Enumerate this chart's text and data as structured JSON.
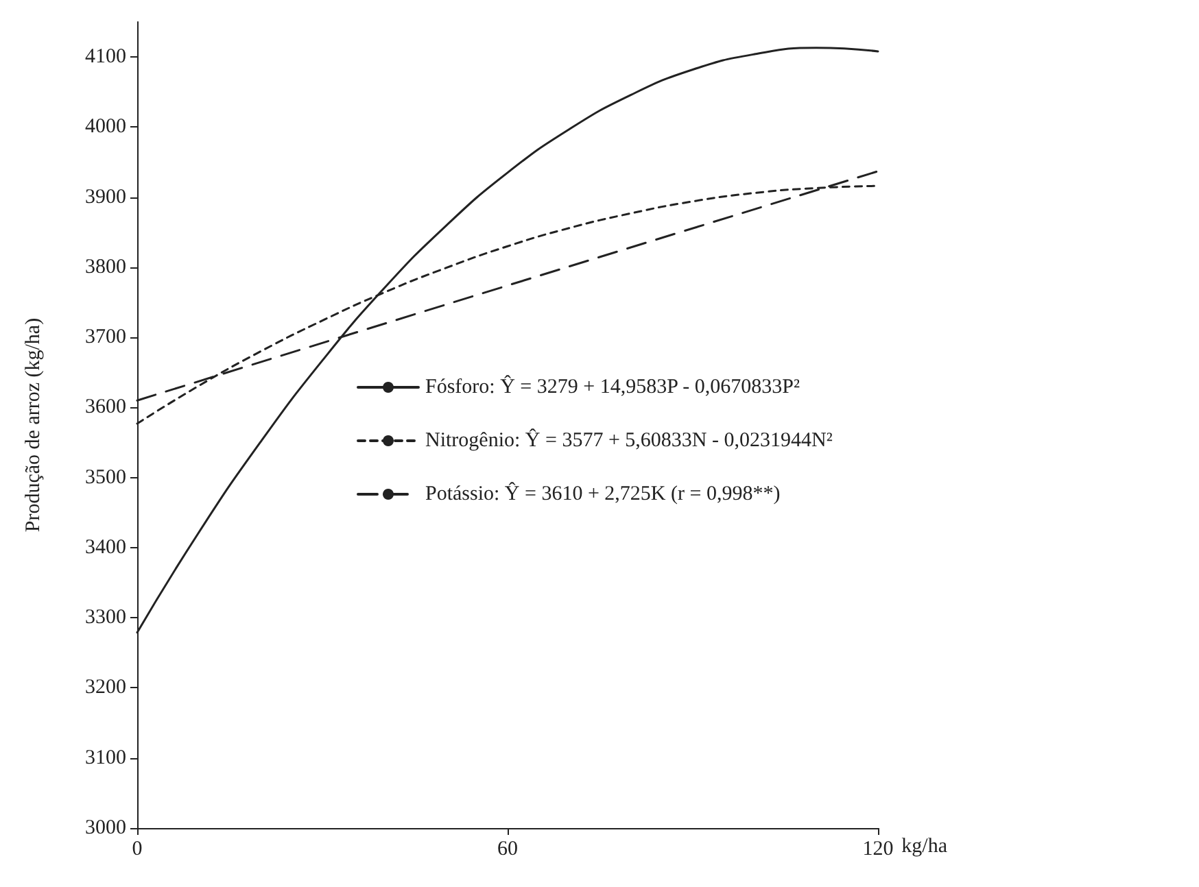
{
  "chart_data": {
    "type": "line",
    "xlabel": "kg/ha",
    "ylabel": "Produção de arroz (kg/ha)",
    "xlim": [
      0,
      120
    ],
    "xticks": [
      0,
      60,
      120
    ],
    "ylim": [
      3000,
      4150
    ],
    "yticks": [
      3000,
      3100,
      3200,
      3300,
      3400,
      3500,
      3600,
      3700,
      3800,
      3900,
      4000,
      4100
    ],
    "legend": "right",
    "marker": "none",
    "series": [
      {
        "name": "Fósforo: Ŷ = 3279 + 14,9583P - 0,0670833P²",
        "color": "#222222",
        "line_style": "solid",
        "x": [
          0,
          10,
          20,
          30,
          40,
          50,
          60,
          70,
          80,
          90,
          100,
          110,
          120
        ],
        "values": [
          3279,
          3422,
          3551,
          3667,
          3770,
          3859,
          3935,
          3997,
          4046,
          4082,
          4104,
          4113,
          4108
        ]
      },
      {
        "name": "Nitrogênio: Ŷ = 3577 + 5,60833N - 0,0231944N²",
        "color": "#222222",
        "line_style": "dotted",
        "x": [
          0,
          10,
          20,
          30,
          40,
          50,
          60,
          70,
          80,
          90,
          100,
          110,
          120
        ],
        "values": [
          3577,
          3631,
          3680,
          3724,
          3764,
          3799,
          3830,
          3856,
          3877,
          3894,
          3906,
          3913,
          3916
        ]
      },
      {
        "name": "Potássio: Ŷ = 3610 + 2,725K (r = 0,998**)",
        "color": "#222222",
        "line_style": "dashed",
        "x": [
          0,
          60,
          120
        ],
        "values": [
          3610,
          3774,
          3937
        ]
      }
    ]
  }
}
